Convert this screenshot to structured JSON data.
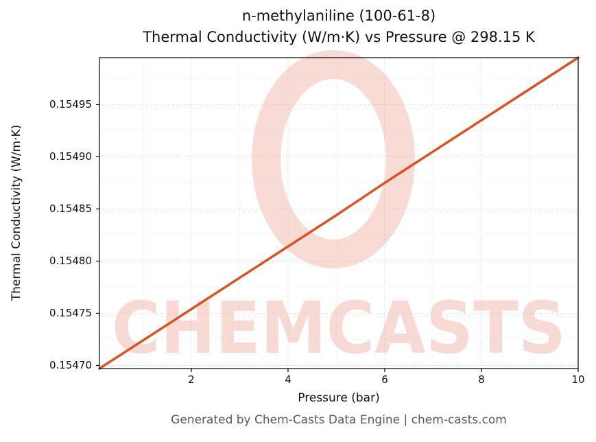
{
  "title": {
    "line1": "n-methylaniline (100-61-8)",
    "line2": "Thermal Conductivity (W/m·K) vs Pressure @ 298.15 K"
  },
  "footer": "Generated by Chem-Casts Data Engine | chem-casts.com",
  "watermark": {
    "text": "CHEMCASTS",
    "color": "#e25a43",
    "opacity": 0.22
  },
  "chart_data": {
    "type": "line",
    "title": "n-methylaniline (100-61-8) — Thermal Conductivity (W/m·K) vs Pressure @ 298.15 K",
    "substance": "n-methylaniline",
    "cas_number": "100-61-8",
    "temperature_label": "298.15 K",
    "xlabel": "Pressure (bar)",
    "ylabel": "Thermal Conductivity (W/m·K)",
    "xlim": [
      0.1,
      10
    ],
    "ylim": [
      0.154697,
      0.154995
    ],
    "xticks": [
      2,
      4,
      6,
      8,
      10
    ],
    "xtick_labels": [
      "2",
      "4",
      "6",
      "8",
      "10"
    ],
    "yticks": [
      0.1547,
      0.15475,
      0.1548,
      0.15485,
      0.1549,
      0.15495
    ],
    "ytick_labels": [
      "0.15470",
      "0.15475",
      "0.15480",
      "0.15485",
      "0.15490",
      "0.15495"
    ],
    "grid": true,
    "legend": "none",
    "series": [
      {
        "name": "Thermal Conductivity vs Pressure",
        "color": "#d9531e",
        "x": [
          0.1,
          1,
          2,
          3,
          4,
          5,
          6,
          7,
          8,
          9,
          10
        ],
        "y": [
          0.154697,
          0.154724,
          0.154754,
          0.154784,
          0.154814,
          0.154844,
          0.154875,
          0.154905,
          0.154935,
          0.154965,
          0.154995
        ]
      }
    ]
  }
}
